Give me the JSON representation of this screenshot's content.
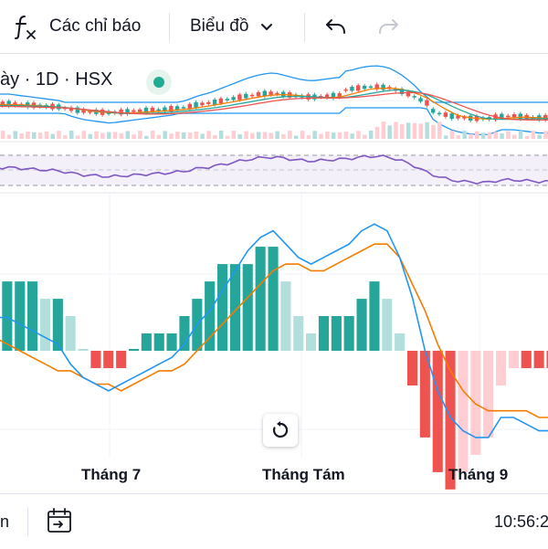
{
  "toolbar": {
    "indicators_label": "Các chỉ báo",
    "chart_type_label": "Biểu đồ",
    "icons": [
      "fx-icon",
      "chevron-down-icon",
      "undo-icon",
      "redo-icon"
    ]
  },
  "legend": {
    "text": "ày · 1D · HSX",
    "status_color": "#22ab94"
  },
  "x_axis": {
    "labels": [
      "Tháng 7",
      "Tháng Tám",
      "Tháng 9"
    ]
  },
  "bottom_bar": {
    "left_text": "n",
    "time_text": "10:56:2"
  },
  "colors": {
    "up": "#26a69a",
    "up_light": "#b2dfdb",
    "down": "#ef5350",
    "down_light": "#ffcdd2",
    "macd_line": "#2196f3",
    "signal_line": "#f57c00",
    "rsi_line": "#7e57c2"
  },
  "chart_data": {
    "type": "line",
    "panes": [
      "price",
      "rsi",
      "macd"
    ],
    "series": [
      {
        "values": [
          5,
          5,
          4,
          3,
          2,
          1,
          -2,
          -4,
          -5,
          -6,
          -5,
          -4,
          -3,
          -2,
          -1,
          1,
          4,
          6,
          9,
          12,
          15,
          17,
          18,
          16,
          14,
          13,
          14,
          15,
          16,
          18,
          19,
          18,
          14,
          8,
          0,
          -6,
          -10,
          -12,
          -13,
          -13,
          -10,
          -10,
          -11,
          -12,
          -12
        ]
      },
      {
        "values": [
          2,
          1,
          0,
          -1,
          -2,
          -3,
          -3,
          -4,
          -5,
          -5,
          -6,
          -5,
          -4,
          -3,
          -3,
          -2,
          0,
          2,
          4,
          6,
          8,
          10,
          12,
          13,
          13,
          12,
          12,
          13,
          14,
          15,
          16,
          16,
          14,
          10,
          6,
          1,
          -3,
          -6,
          -8,
          -9,
          -9,
          -9,
          -9,
          -10,
          -10
        ]
      }
    ],
    "histogram": [
      3,
      4,
      4,
      4,
      3,
      3,
      2,
      0,
      -1,
      -1,
      -1,
      0,
      1,
      1,
      1,
      2,
      3,
      4,
      5,
      5,
      5,
      6,
      6,
      4,
      2,
      1,
      2,
      2,
      2,
      3,
      4,
      3,
      1,
      -2,
      -5,
      -7,
      -8,
      -7,
      -6,
      -5,
      -2,
      -1,
      -1,
      -1,
      -1
    ]
  }
}
